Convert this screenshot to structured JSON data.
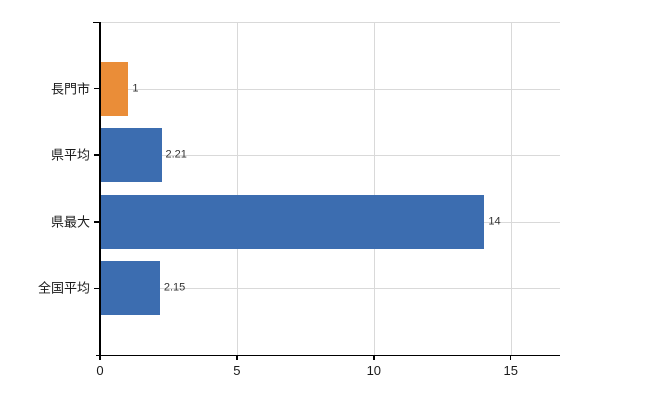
{
  "chart_data": {
    "type": "bar",
    "orientation": "horizontal",
    "title": "",
    "xlabel": "",
    "ylabel": "",
    "categories": [
      "長門市",
      "県平均",
      "県最大",
      "全国平均"
    ],
    "values": [
      1,
      2.21,
      14,
      2.15
    ],
    "value_labels": [
      "1",
      "2.21",
      "14",
      "2.15"
    ],
    "bar_colors": [
      "#ea8d38",
      "#3c6db0",
      "#3c6db0",
      "#3c6db0"
    ],
    "xlim": [
      0,
      16.8
    ],
    "x_ticks": [
      0,
      5,
      10,
      15
    ],
    "x_tick_labels": [
      "0",
      "5",
      "10",
      "15"
    ],
    "grid": true,
    "legend": false
  },
  "colors": {
    "highlight_orange": "#ea8d38",
    "series_blue": "#3c6db0",
    "gridline": "#d9d9d9",
    "axis": "#000000",
    "value_label_text": "#333333",
    "tick_label_text": "#1a1a1a",
    "background": "#ffffff"
  }
}
